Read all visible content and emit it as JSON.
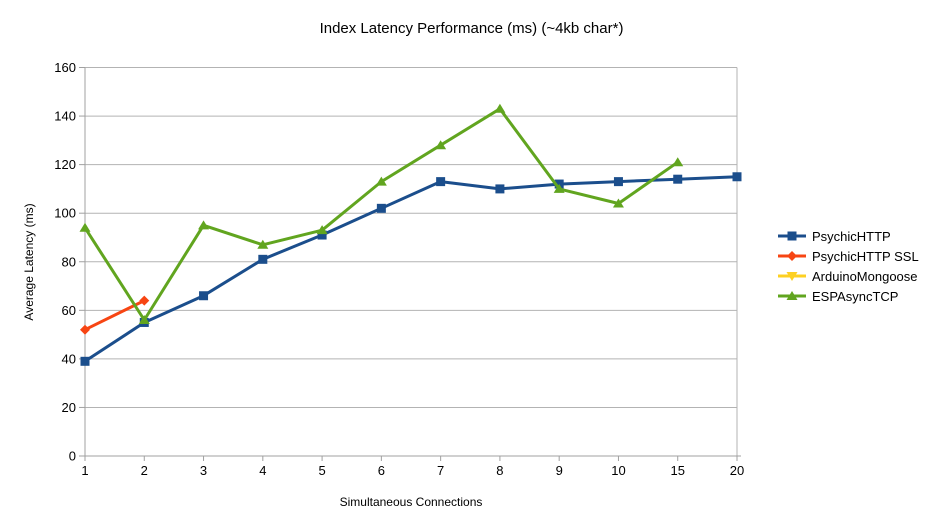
{
  "title": "Index Latency Performance (ms) (~4kb char*)",
  "chart_data": {
    "type": "line",
    "title": "Index Latency Performance (ms) (~4kb char*)",
    "xlabel": "Simultaneous Connections",
    "ylabel": "Average Latency (ms)",
    "categories": [
      "1",
      "2",
      "3",
      "4",
      "5",
      "6",
      "7",
      "8",
      "9",
      "10",
      "15",
      "20"
    ],
    "ylim": [
      0,
      160
    ],
    "ytick_step": 20,
    "grid": "horizontal",
    "legend_position": "right",
    "series": [
      {
        "name": "PsychicHTTP",
        "color": "#1b4e8c",
        "marker": "square",
        "values": [
          39,
          55,
          66,
          81,
          91,
          102,
          113,
          110,
          112,
          113,
          114,
          115
        ]
      },
      {
        "name": "PsychicHTTP SSL",
        "color": "#f74513",
        "marker": "diamond",
        "values": [
          52,
          64,
          null,
          null,
          null,
          null,
          null,
          null,
          null,
          null,
          null,
          null
        ]
      },
      {
        "name": "ArduinoMongoose",
        "color": "#fdd023",
        "marker": "triangle-down",
        "values": [
          null,
          null,
          null,
          null,
          null,
          null,
          null,
          null,
          null,
          null,
          null,
          null
        ]
      },
      {
        "name": "ESPAsyncTCP",
        "color": "#61a51f",
        "marker": "triangle-up",
        "values": [
          94,
          56,
          95,
          87,
          93,
          113,
          128,
          143,
          110,
          104,
          121,
          null
        ]
      }
    ]
  },
  "colors": {
    "background": "#ffffff",
    "gridline": "#b3b3b3",
    "axis": "#a0a0a0",
    "text": "#000000"
  }
}
